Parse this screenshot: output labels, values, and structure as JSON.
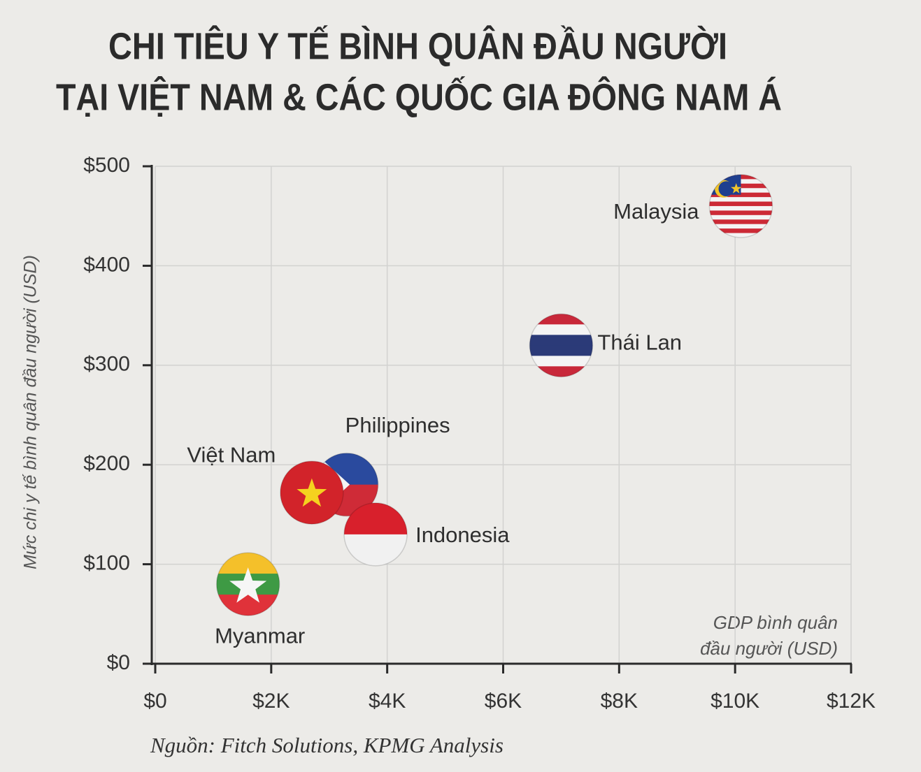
{
  "chart_data": {
    "type": "scatter",
    "title": [
      "CHI TIÊU Y TẾ BÌNH QUÂN ĐẦU NGƯỜI",
      "TẠI VIỆT NAM & CÁC QUỐC GIA ĐÔNG NAM Á"
    ],
    "ylabel": "Mức chi y tế bình quân đầu người (USD)",
    "xlabel": [
      "GDP bình quân",
      "đầu người (USD)"
    ],
    "source": "Nguồn: Fitch Solutions, KPMG Analysis",
    "labels": [
      "Malaysia",
      "Thái Lan",
      "Philippines",
      "Việt Nam",
      "Indonesia",
      "Myanmar"
    ],
    "x": [
      10100,
      7000,
      3300,
      2700,
      3800,
      1600
    ],
    "values": [
      460,
      320,
      180,
      172,
      130,
      80
    ],
    "xlim": [
      0,
      12000
    ],
    "xticks": [
      {
        "value": 0,
        "label": "$0"
      },
      {
        "value": 2000,
        "label": "$2K"
      },
      {
        "value": 4000,
        "label": "$4K"
      },
      {
        "value": 6000,
        "label": "$6K"
      },
      {
        "value": 8000,
        "label": "$8K"
      },
      {
        "value": 10000,
        "label": "$10K"
      },
      {
        "value": 12000,
        "label": "$12K"
      }
    ],
    "ylim": [
      0,
      500
    ],
    "yticks": [
      {
        "value": 0,
        "label": "$0"
      },
      {
        "value": 100,
        "label": "$100"
      },
      {
        "value": 200,
        "label": "$200"
      },
      {
        "value": 300,
        "label": "$300"
      },
      {
        "value": 400,
        "label": "$400"
      },
      {
        "value": 500,
        "label": "$500"
      }
    ],
    "grid": true
  }
}
